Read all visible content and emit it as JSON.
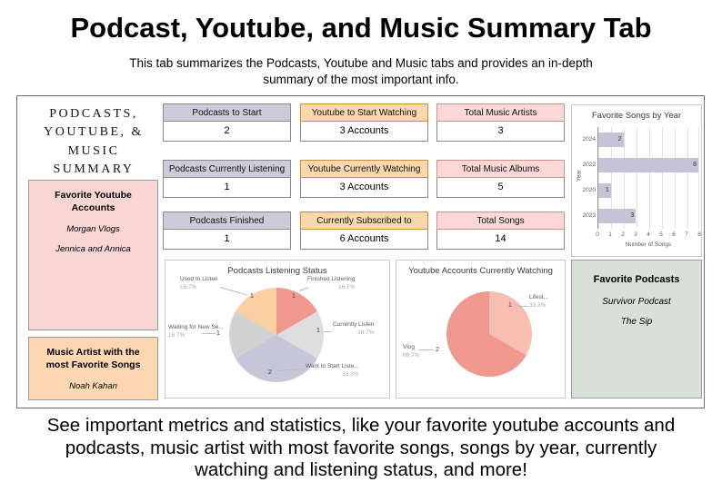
{
  "page": {
    "title": "Podcast, Youtube, and Music Summary Tab",
    "subtitle": [
      "This tab summarizes the Podcasts, Youtube and Music tabs and provides an in-depth",
      "summary of the most important info."
    ],
    "footer": [
      "See important metrics and statistics, like your favorite youtube accounts and",
      "podcasts, music artist with most favorite songs, songs by year, currently",
      "watching and listening status, and more!"
    ]
  },
  "summary_panel": {
    "heading_lines": [
      "PODCASTS,",
      "YOUTUBE, &",
      "MUSIC",
      "SUMMARY"
    ],
    "favorite_youtube_accounts": {
      "title": "Favorite Youtube Accounts",
      "items": [
        "Morgan Vlogs",
        "Jennica and Annica"
      ]
    },
    "top_music_artist": {
      "title": "Music Artist with the most Favorite Songs",
      "items": [
        "Noah Kahan"
      ]
    },
    "favorite_podcasts": {
      "title": "Favorite Podcasts",
      "items": [
        "Survivor Podcast",
        "The Sip"
      ]
    }
  },
  "stat_cards": [
    {
      "label": "Podcasts to Start",
      "value": "2"
    },
    {
      "label": "Podcasts Currently Listening",
      "value": "1"
    },
    {
      "label": "Podcasts Finished",
      "value": "1"
    },
    {
      "label": "Youtube to Start Watching",
      "value": "3 Accounts"
    },
    {
      "label": "Youtube Currently Watching",
      "value": "3 Accounts"
    },
    {
      "label": "Currently Subscribed to",
      "value": "6 Accounts"
    },
    {
      "label": "Total Music Artists",
      "value": "3"
    },
    {
      "label": "Total Music Albums",
      "value": "5"
    },
    {
      "label": "Total Songs",
      "value": "14"
    }
  ],
  "colors": {
    "podcast_header": "#cbcbd9",
    "youtube_header": "#fbd7af",
    "music_header": "#fbd7d7",
    "pink_box": "#f9d6d4",
    "orange_box": "#fcd7b2",
    "green_box": "#d8e1d8",
    "bar_fill": "#c4c4d6"
  },
  "chart_data": [
    {
      "type": "bar",
      "orientation": "horizontal",
      "title": "Favorite Songs by Year",
      "categories": [
        "2024",
        "2022",
        "2020",
        "2023"
      ],
      "values": [
        2,
        8,
        1,
        3
      ],
      "xlabel": "Number of Songs",
      "ylabel": "Year",
      "xlim": [
        0,
        8
      ],
      "xticks": [
        0,
        1,
        2,
        3,
        4,
        5,
        6,
        7,
        8
      ],
      "bar_color": "#c4c4d6",
      "grid": true,
      "legend": false
    },
    {
      "type": "pie",
      "title": "Podcasts Listening Status",
      "legend": false,
      "slices": [
        {
          "label": "Finished Listening",
          "value": 1,
          "percent": "16.7%",
          "color": "#f0988e"
        },
        {
          "label": "Currently Listen",
          "value": 1,
          "percent": "16.7%",
          "color": "#dedede"
        },
        {
          "label": "Want to Start Liste...",
          "value": 2,
          "percent": "33.3%",
          "color": "#c6c6d8"
        },
        {
          "label": "Waiting for New Se...",
          "value": 1,
          "percent": "16.7%",
          "color": "#d2d2d2"
        },
        {
          "label": "Used to Listen",
          "value": 1,
          "percent": "16.7%",
          "color": "#fbcfa4"
        }
      ]
    },
    {
      "type": "pie",
      "title": "Youtube Accounts Currently Watching",
      "legend": false,
      "slices": [
        {
          "label": "Lifest...",
          "value": 1,
          "percent": "33.3%",
          "color": "#f7bfb4"
        },
        {
          "label": "Vlog",
          "value": 2,
          "percent": "66.7%",
          "color": "#f0988e"
        }
      ]
    }
  ]
}
